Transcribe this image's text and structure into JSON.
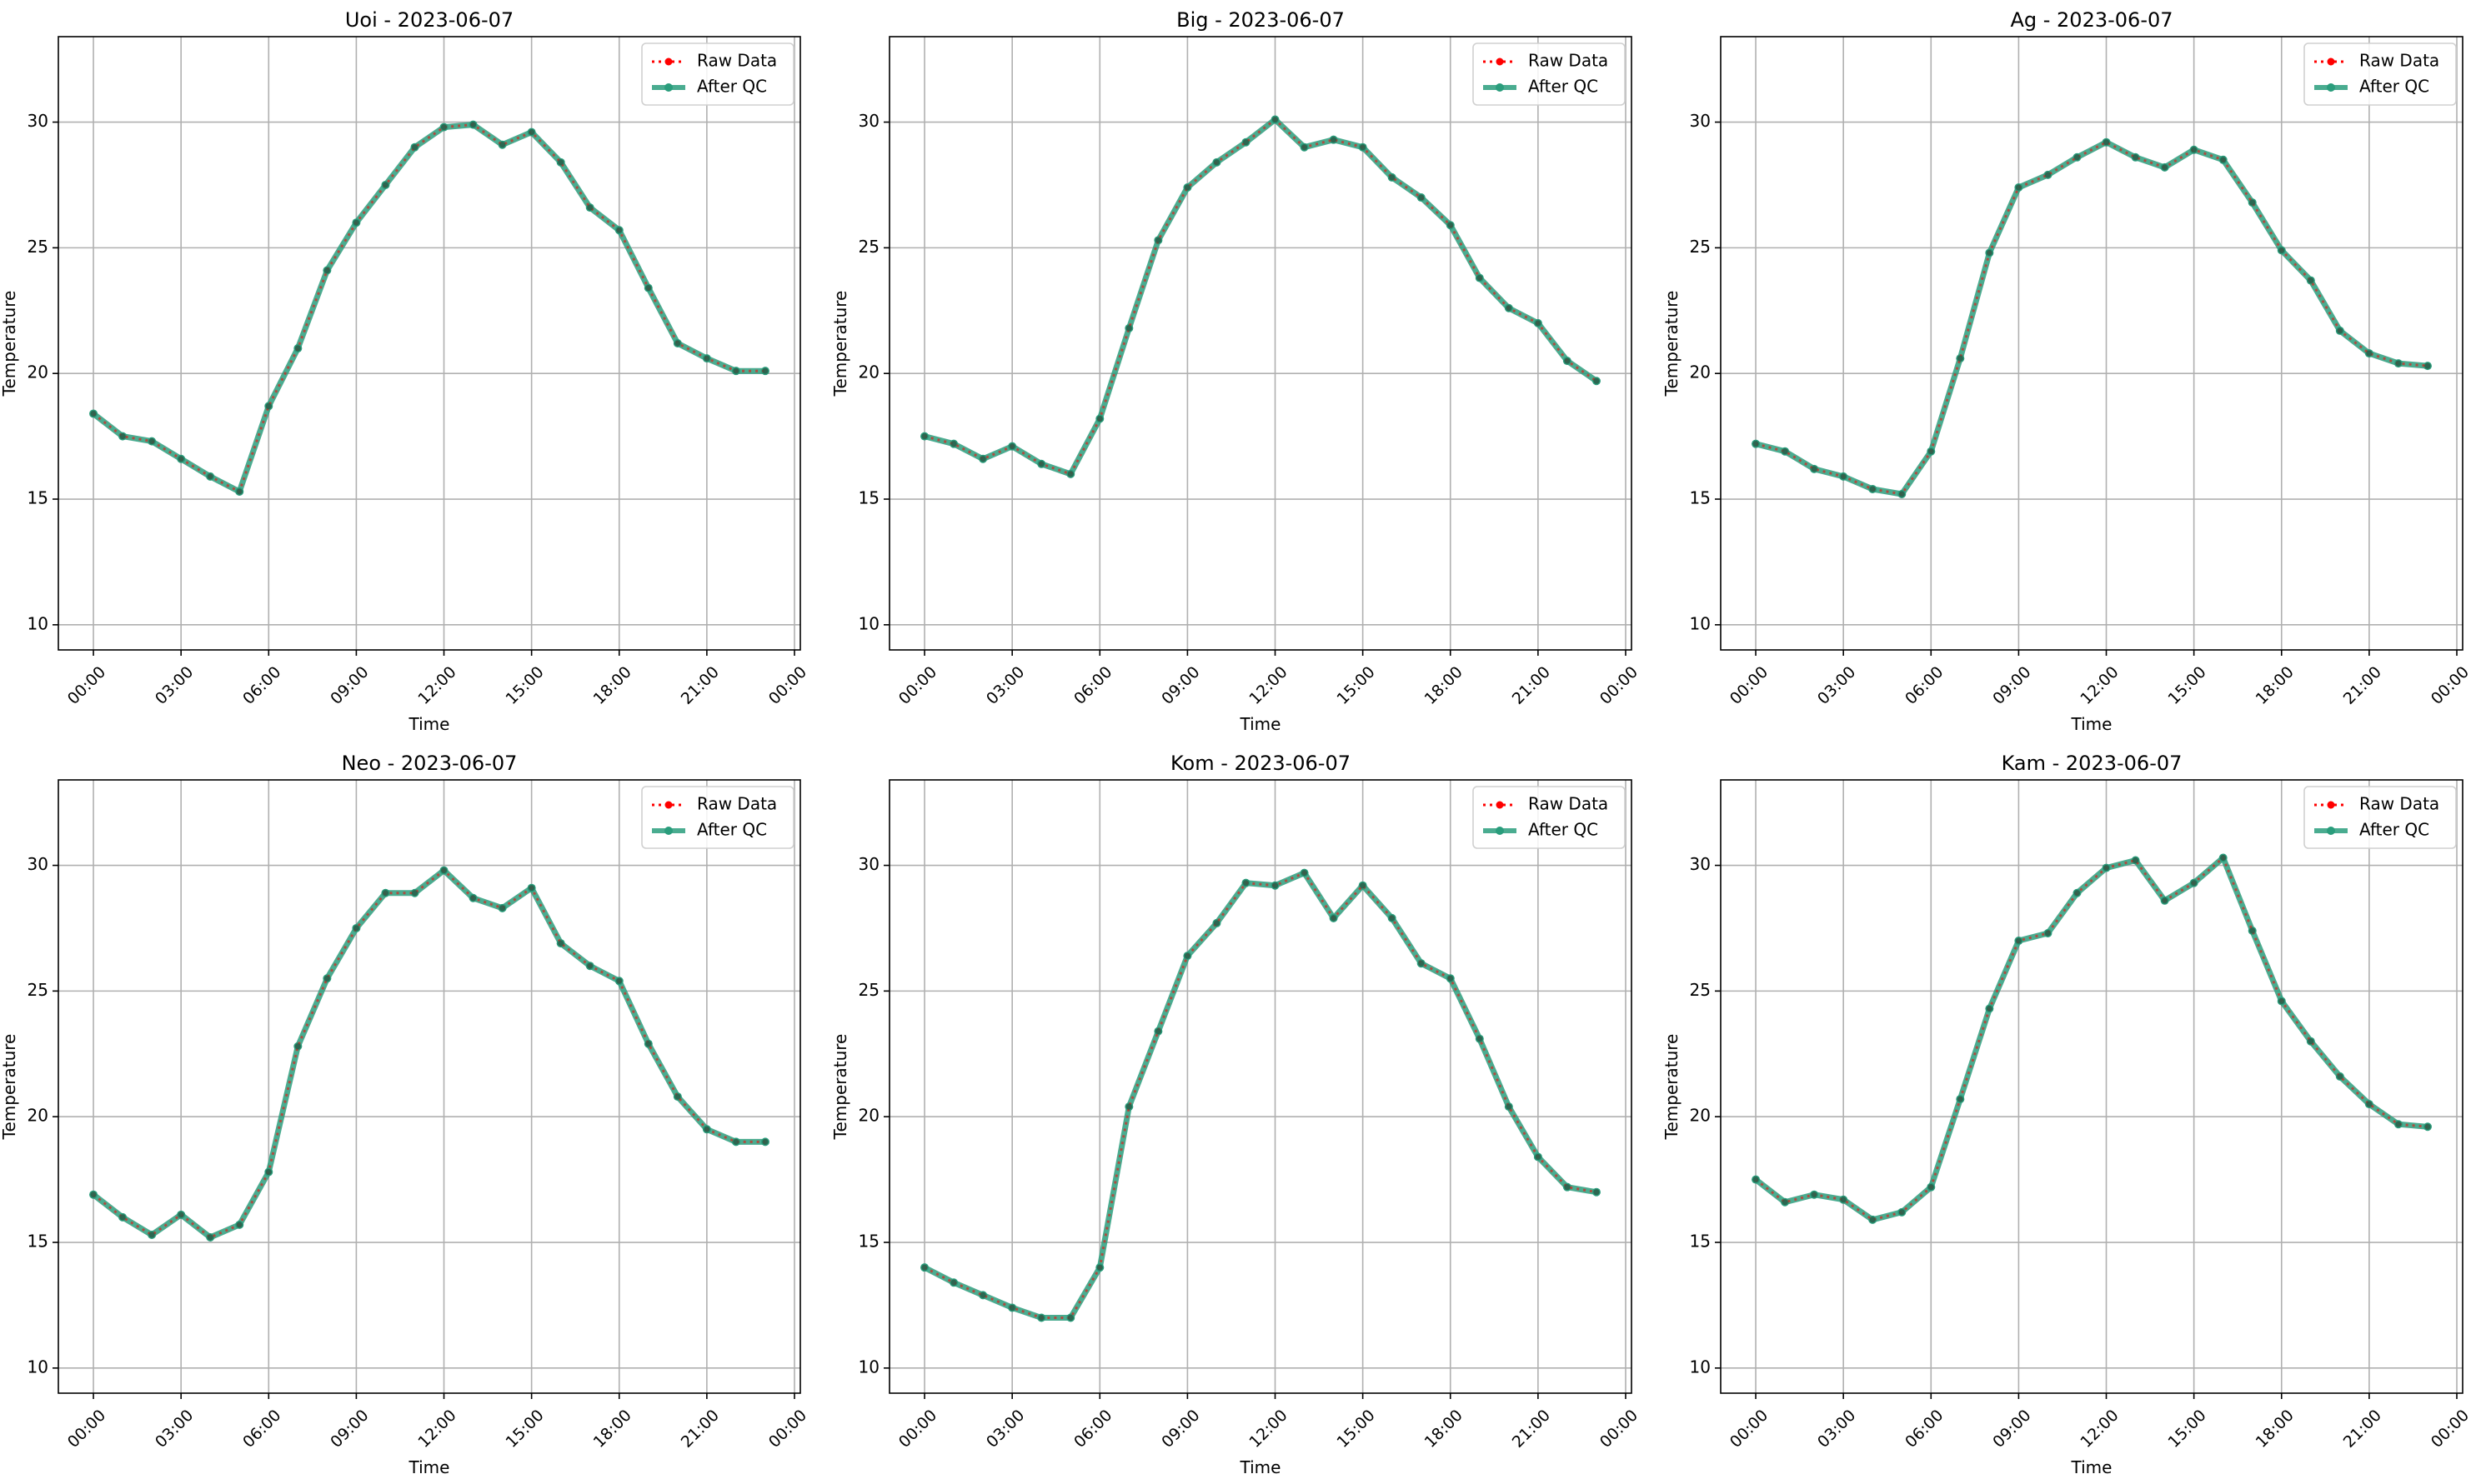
{
  "figure": {
    "background": "#ffffff"
  },
  "colors": {
    "raw": "#ff0000",
    "qc": "#2a9d7c",
    "grid": "#b0b0b0",
    "axis": "#000000",
    "text": "#000000"
  },
  "chart_data": [
    {
      "type": "line",
      "title": "Uoi - 2023-06-07",
      "xlabel": "Time",
      "ylabel": "Temperature",
      "x_ticks": [
        "00:00",
        "03:00",
        "06:00",
        "09:00",
        "12:00",
        "15:00",
        "18:00",
        "21:00",
        "00:00"
      ],
      "x_hours_range": [
        -1.2,
        24.2
      ],
      "y_ticks": [
        10,
        15,
        20,
        25,
        30
      ],
      "ylim": [
        9,
        33.4
      ],
      "grid": true,
      "legend": "top-right",
      "hours": [
        0,
        1,
        2,
        3,
        4,
        5,
        6,
        7,
        8,
        9,
        10,
        11,
        12,
        13,
        14,
        15,
        16,
        17,
        18,
        19,
        20,
        21,
        22,
        23
      ],
      "series": [
        {
          "name": "Raw Data",
          "style": "dotted",
          "values": [
            18.4,
            17.5,
            17.3,
            16.6,
            15.9,
            15.3,
            18.7,
            21.0,
            24.1,
            26.0,
            27.5,
            29.0,
            29.8,
            29.9,
            29.1,
            29.6,
            28.4,
            26.6,
            25.7,
            23.4,
            21.2,
            20.6,
            20.1,
            20.1
          ]
        },
        {
          "name": "After QC",
          "style": "solid",
          "values": [
            18.4,
            17.5,
            17.3,
            16.6,
            15.9,
            15.3,
            18.7,
            21.0,
            24.1,
            26.0,
            27.5,
            29.0,
            29.8,
            29.9,
            29.1,
            29.6,
            28.4,
            26.6,
            25.7,
            23.4,
            21.2,
            20.6,
            20.1,
            20.1
          ]
        }
      ]
    },
    {
      "type": "line",
      "title": "Big - 2023-06-07",
      "xlabel": "Time",
      "ylabel": "Temperature",
      "x_ticks": [
        "00:00",
        "03:00",
        "06:00",
        "09:00",
        "12:00",
        "15:00",
        "18:00",
        "21:00",
        "00:00"
      ],
      "x_hours_range": [
        -1.2,
        24.2
      ],
      "y_ticks": [
        10,
        15,
        20,
        25,
        30
      ],
      "ylim": [
        9,
        33.4
      ],
      "grid": true,
      "legend": "top-right",
      "hours": [
        0,
        1,
        2,
        3,
        4,
        5,
        6,
        7,
        8,
        9,
        10,
        11,
        12,
        13,
        14,
        15,
        16,
        17,
        18,
        19,
        20,
        21,
        22,
        23
      ],
      "series": [
        {
          "name": "Raw Data",
          "style": "dotted",
          "values": [
            17.5,
            17.2,
            16.6,
            17.1,
            16.4,
            16.0,
            18.2,
            21.8,
            25.3,
            27.4,
            28.4,
            29.2,
            30.1,
            29.0,
            29.3,
            29.0,
            27.8,
            27.0,
            25.9,
            23.8,
            22.6,
            22.0,
            20.5,
            19.7
          ]
        },
        {
          "name": "After QC",
          "style": "solid",
          "values": [
            17.5,
            17.2,
            16.6,
            17.1,
            16.4,
            16.0,
            18.2,
            21.8,
            25.3,
            27.4,
            28.4,
            29.2,
            30.1,
            29.0,
            29.3,
            29.0,
            27.8,
            27.0,
            25.9,
            23.8,
            22.6,
            22.0,
            20.5,
            19.7
          ]
        }
      ]
    },
    {
      "type": "line",
      "title": "Ag - 2023-06-07",
      "xlabel": "Time",
      "ylabel": "Temperature",
      "x_ticks": [
        "00:00",
        "03:00",
        "06:00",
        "09:00",
        "12:00",
        "15:00",
        "18:00",
        "21:00",
        "00:00"
      ],
      "x_hours_range": [
        -1.2,
        24.2
      ],
      "y_ticks": [
        10,
        15,
        20,
        25,
        30
      ],
      "ylim": [
        9,
        33.4
      ],
      "grid": true,
      "legend": "top-right",
      "hours": [
        0,
        1,
        2,
        3,
        4,
        5,
        6,
        7,
        8,
        9,
        10,
        11,
        12,
        13,
        14,
        15,
        16,
        17,
        18,
        19,
        20,
        21,
        22,
        23
      ],
      "series": [
        {
          "name": "Raw Data",
          "style": "dotted",
          "values": [
            17.2,
            16.9,
            16.2,
            15.9,
            15.4,
            15.2,
            16.9,
            20.6,
            24.8,
            27.4,
            27.9,
            28.6,
            29.2,
            28.6,
            28.2,
            28.9,
            28.5,
            26.8,
            24.9,
            23.7,
            21.7,
            20.8,
            20.4,
            20.3
          ]
        },
        {
          "name": "After QC",
          "style": "solid",
          "values": [
            17.2,
            16.9,
            16.2,
            15.9,
            15.4,
            15.2,
            16.9,
            20.6,
            24.8,
            27.4,
            27.9,
            28.6,
            29.2,
            28.6,
            28.2,
            28.9,
            28.5,
            26.8,
            24.9,
            23.7,
            21.7,
            20.8,
            20.4,
            20.3
          ]
        }
      ]
    },
    {
      "type": "line",
      "title": "Neo - 2023-06-07",
      "xlabel": "Time",
      "ylabel": "Temperature",
      "x_ticks": [
        "00:00",
        "03:00",
        "06:00",
        "09:00",
        "12:00",
        "15:00",
        "18:00",
        "21:00",
        "00:00"
      ],
      "x_hours_range": [
        -1.2,
        24.2
      ],
      "y_ticks": [
        10,
        15,
        20,
        25,
        30
      ],
      "ylim": [
        9,
        33.4
      ],
      "grid": true,
      "legend": "top-right",
      "hours": [
        0,
        1,
        2,
        3,
        4,
        5,
        6,
        7,
        8,
        9,
        10,
        11,
        12,
        13,
        14,
        15,
        16,
        17,
        18,
        19,
        20,
        21,
        22,
        23
      ],
      "series": [
        {
          "name": "Raw Data",
          "style": "dotted",
          "values": [
            16.9,
            16.0,
            15.3,
            16.1,
            15.2,
            15.7,
            17.8,
            22.8,
            25.5,
            27.5,
            28.9,
            28.9,
            29.8,
            28.7,
            28.3,
            29.1,
            26.9,
            26.0,
            25.4,
            22.9,
            20.8,
            19.5,
            19.0,
            19.0
          ]
        },
        {
          "name": "After QC",
          "style": "solid",
          "values": [
            16.9,
            16.0,
            15.3,
            16.1,
            15.2,
            15.7,
            17.8,
            22.8,
            25.5,
            27.5,
            28.9,
            28.9,
            29.8,
            28.7,
            28.3,
            29.1,
            26.9,
            26.0,
            25.4,
            22.9,
            20.8,
            19.5,
            19.0,
            19.0
          ]
        }
      ]
    },
    {
      "type": "line",
      "title": "Kom - 2023-06-07",
      "xlabel": "Time",
      "ylabel": "Temperature",
      "x_ticks": [
        "00:00",
        "03:00",
        "06:00",
        "09:00",
        "12:00",
        "15:00",
        "18:00",
        "21:00",
        "00:00"
      ],
      "x_hours_range": [
        -1.2,
        24.2
      ],
      "y_ticks": [
        10,
        15,
        20,
        25,
        30
      ],
      "ylim": [
        9,
        33.4
      ],
      "grid": true,
      "legend": "top-right",
      "hours": [
        0,
        1,
        2,
        3,
        4,
        5,
        6,
        7,
        8,
        9,
        10,
        11,
        12,
        13,
        14,
        15,
        16,
        17,
        18,
        19,
        20,
        21,
        22,
        23
      ],
      "series": [
        {
          "name": "Raw Data",
          "style": "dotted",
          "values": [
            14.0,
            13.4,
            12.9,
            12.4,
            12.0,
            12.0,
            14.0,
            20.4,
            23.4,
            26.4,
            27.7,
            29.3,
            29.2,
            29.7,
            27.9,
            29.2,
            27.9,
            26.1,
            25.5,
            23.1,
            20.4,
            18.4,
            17.2,
            17.0
          ]
        },
        {
          "name": "After QC",
          "style": "solid",
          "values": [
            14.0,
            13.4,
            12.9,
            12.4,
            12.0,
            12.0,
            14.0,
            20.4,
            23.4,
            26.4,
            27.7,
            29.3,
            29.2,
            29.7,
            27.9,
            29.2,
            27.9,
            26.1,
            25.5,
            23.1,
            20.4,
            18.4,
            17.2,
            17.0
          ]
        }
      ]
    },
    {
      "type": "line",
      "title": "Kam - 2023-06-07",
      "xlabel": "Time",
      "ylabel": "Temperature",
      "x_ticks": [
        "00:00",
        "03:00",
        "06:00",
        "09:00",
        "12:00",
        "15:00",
        "18:00",
        "21:00",
        "00:00"
      ],
      "x_hours_range": [
        -1.2,
        24.2
      ],
      "y_ticks": [
        10,
        15,
        20,
        25,
        30
      ],
      "ylim": [
        9,
        33.4
      ],
      "grid": true,
      "legend": "top-right",
      "hours": [
        0,
        1,
        2,
        3,
        4,
        5,
        6,
        7,
        8,
        9,
        10,
        11,
        12,
        13,
        14,
        15,
        16,
        17,
        18,
        19,
        20,
        21,
        22,
        23
      ],
      "series": [
        {
          "name": "Raw Data",
          "style": "dotted",
          "values": [
            17.5,
            16.6,
            16.9,
            16.7,
            15.9,
            16.2,
            17.2,
            20.7,
            24.3,
            27.0,
            27.3,
            28.9,
            29.9,
            30.2,
            28.6,
            29.3,
            30.3,
            27.4,
            24.6,
            23.0,
            21.6,
            20.5,
            19.7,
            19.6
          ]
        },
        {
          "name": "After QC",
          "style": "solid",
          "values": [
            17.5,
            16.6,
            16.9,
            16.7,
            15.9,
            16.2,
            17.2,
            20.7,
            24.3,
            27.0,
            27.3,
            28.9,
            29.9,
            30.2,
            28.6,
            29.3,
            30.3,
            27.4,
            24.6,
            23.0,
            21.6,
            20.5,
            19.7,
            19.6
          ]
        }
      ]
    }
  ]
}
